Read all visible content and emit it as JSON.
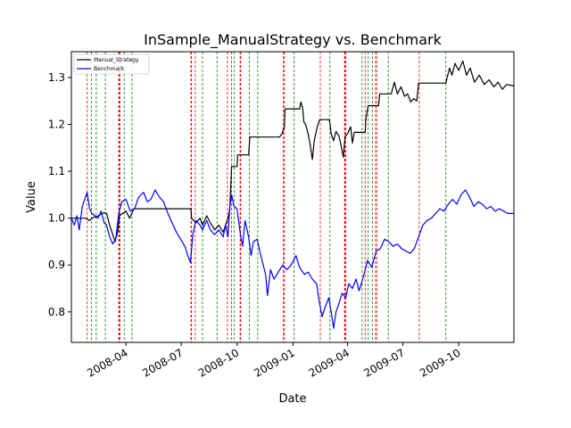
{
  "chart_data": {
    "type": "line",
    "title": "InSample_ManualStrategy vs. Benchmark",
    "xlabel": "Date",
    "ylabel": "Value",
    "xlim": [
      "2008-01-02",
      "2009-12-31"
    ],
    "ylim": [
      0.735,
      1.355
    ],
    "xticks": [
      {
        "date": "2008-04-01",
        "label": "2008-04"
      },
      {
        "date": "2008-07-01",
        "label": "2008-07"
      },
      {
        "date": "2008-10-01",
        "label": "2008-10"
      },
      {
        "date": "2009-01-01",
        "label": "2009-01"
      },
      {
        "date": "2009-04-01",
        "label": "2009-04"
      },
      {
        "date": "2009-07-01",
        "label": "2009-07"
      },
      {
        "date": "2009-10-01",
        "label": "2009-10"
      }
    ],
    "yticks": [
      0.8,
      0.9,
      1.0,
      1.1,
      1.2,
      1.3
    ],
    "legend": {
      "position": "top-left",
      "entries": [
        "Manual_Strategy",
        "Benchmark"
      ]
    },
    "series": [
      {
        "name": "Manual_Strategy",
        "color": "#000000",
        "points": [
          [
            "2008-01-02",
            1.0
          ],
          [
            "2008-01-25",
            1.0
          ],
          [
            "2008-02-01",
            0.995
          ],
          [
            "2008-02-05",
            1.0
          ],
          [
            "2008-02-15",
            1.005
          ],
          [
            "2008-02-25",
            1.012
          ],
          [
            "2008-02-29",
            1.01
          ],
          [
            "2008-03-04",
            0.99
          ],
          [
            "2008-03-10",
            0.965
          ],
          [
            "2008-03-14",
            0.95
          ],
          [
            "2008-03-19",
            0.975
          ],
          [
            "2008-03-21",
            1.005
          ],
          [
            "2008-04-01",
            1.015
          ],
          [
            "2008-04-07",
            1.0
          ],
          [
            "2008-04-14",
            1.02
          ],
          [
            "2008-07-17",
            1.02
          ],
          [
            "2008-07-18",
            1.0
          ],
          [
            "2008-07-25",
            0.99
          ],
          [
            "2008-08-01",
            1.0
          ],
          [
            "2008-08-05",
            0.985
          ],
          [
            "2008-08-12",
            1.005
          ],
          [
            "2008-08-18",
            0.99
          ],
          [
            "2008-08-25",
            0.975
          ],
          [
            "2008-09-01",
            0.985
          ],
          [
            "2008-09-08",
            0.97
          ],
          [
            "2008-09-12",
            0.985
          ],
          [
            "2008-09-16",
            1.0
          ],
          [
            "2008-09-19",
            1.02
          ],
          [
            "2008-09-22",
            1.11
          ],
          [
            "2008-10-01",
            1.11
          ],
          [
            "2008-10-02",
            1.135
          ],
          [
            "2008-10-20",
            1.135
          ],
          [
            "2008-10-22",
            1.173
          ],
          [
            "2008-12-10",
            1.173
          ],
          [
            "2008-12-14",
            1.18
          ],
          [
            "2008-12-18",
            1.195
          ],
          [
            "2008-12-19",
            1.233
          ],
          [
            "2009-01-12",
            1.233
          ],
          [
            "2009-01-14",
            1.248
          ],
          [
            "2009-01-17",
            1.235
          ],
          [
            "2009-01-19",
            1.205
          ],
          [
            "2009-01-22",
            1.2
          ],
          [
            "2009-01-26",
            1.18
          ],
          [
            "2009-01-29",
            1.16
          ],
          [
            "2009-02-02",
            1.125
          ],
          [
            "2009-02-05",
            1.165
          ],
          [
            "2009-02-10",
            1.195
          ],
          [
            "2009-02-14",
            1.21
          ],
          [
            "2009-03-02",
            1.21
          ],
          [
            "2009-03-05",
            1.18
          ],
          [
            "2009-03-09",
            1.165
          ],
          [
            "2009-03-13",
            1.185
          ],
          [
            "2009-03-18",
            1.175
          ],
          [
            "2009-03-22",
            1.15
          ],
          [
            "2009-03-25",
            1.13
          ],
          [
            "2009-03-28",
            1.175
          ],
          [
            "2009-04-01",
            1.18
          ],
          [
            "2009-04-06",
            1.195
          ],
          [
            "2009-04-09",
            1.16
          ],
          [
            "2009-04-12",
            1.183
          ],
          [
            "2009-04-30",
            1.183
          ],
          [
            "2009-05-01",
            1.21
          ],
          [
            "2009-05-05",
            1.24
          ],
          [
            "2009-05-22",
            1.24
          ],
          [
            "2009-05-24",
            1.265
          ],
          [
            "2009-06-12",
            1.265
          ],
          [
            "2009-06-14",
            1.275
          ],
          [
            "2009-06-17",
            1.29
          ],
          [
            "2009-06-22",
            1.265
          ],
          [
            "2009-06-28",
            1.28
          ],
          [
            "2009-07-04",
            1.26
          ],
          [
            "2009-07-09",
            1.265
          ],
          [
            "2009-07-14",
            1.248
          ],
          [
            "2009-07-19",
            1.255
          ],
          [
            "2009-07-24",
            1.25
          ],
          [
            "2009-07-27",
            1.288
          ],
          [
            "2009-09-10",
            1.288
          ],
          [
            "2009-09-12",
            1.3
          ],
          [
            "2009-09-16",
            1.32
          ],
          [
            "2009-09-20",
            1.305
          ],
          [
            "2009-09-25",
            1.33
          ],
          [
            "2009-10-01",
            1.315
          ],
          [
            "2009-10-08",
            1.335
          ],
          [
            "2009-10-14",
            1.305
          ],
          [
            "2009-10-20",
            1.32
          ],
          [
            "2009-10-27",
            1.29
          ],
          [
            "2009-11-04",
            1.305
          ],
          [
            "2009-11-12",
            1.285
          ],
          [
            "2009-11-20",
            1.295
          ],
          [
            "2009-11-28",
            1.28
          ],
          [
            "2009-12-05",
            1.29
          ],
          [
            "2009-12-12",
            1.275
          ],
          [
            "2009-12-19",
            1.285
          ],
          [
            "2009-12-31",
            1.282
          ]
        ]
      },
      {
        "name": "Benchmark",
        "color": "#0000ff",
        "points": [
          [
            "2008-01-02",
            1.0
          ],
          [
            "2008-01-07",
            0.985
          ],
          [
            "2008-01-11",
            1.005
          ],
          [
            "2008-01-15",
            0.975
          ],
          [
            "2008-01-20",
            1.025
          ],
          [
            "2008-01-24",
            1.04
          ],
          [
            "2008-01-28",
            1.055
          ],
          [
            "2008-02-01",
            1.02
          ],
          [
            "2008-02-05",
            1.01
          ],
          [
            "2008-02-10",
            1.005
          ],
          [
            "2008-02-15",
            1.0
          ],
          [
            "2008-02-20",
            1.015
          ],
          [
            "2008-02-25",
            0.99
          ],
          [
            "2008-02-29",
            0.985
          ],
          [
            "2008-03-05",
            0.96
          ],
          [
            "2008-03-10",
            0.945
          ],
          [
            "2008-03-15",
            0.955
          ],
          [
            "2008-03-20",
            1.01
          ],
          [
            "2008-03-25",
            1.035
          ],
          [
            "2008-04-01",
            1.04
          ],
          [
            "2008-04-08",
            1.015
          ],
          [
            "2008-04-15",
            1.02
          ],
          [
            "2008-04-22",
            1.045
          ],
          [
            "2008-04-30",
            1.055
          ],
          [
            "2008-05-06",
            1.035
          ],
          [
            "2008-05-12",
            1.04
          ],
          [
            "2008-05-19",
            1.06
          ],
          [
            "2008-05-26",
            1.045
          ],
          [
            "2008-06-02",
            1.035
          ],
          [
            "2008-06-09",
            1.01
          ],
          [
            "2008-06-16",
            0.99
          ],
          [
            "2008-06-23",
            0.97
          ],
          [
            "2008-06-30",
            0.955
          ],
          [
            "2008-07-07",
            0.94
          ],
          [
            "2008-07-12",
            0.92
          ],
          [
            "2008-07-16",
            0.905
          ],
          [
            "2008-07-20",
            0.965
          ],
          [
            "2008-07-25",
            0.995
          ],
          [
            "2008-08-01",
            0.985
          ],
          [
            "2008-08-05",
            0.975
          ],
          [
            "2008-08-12",
            0.995
          ],
          [
            "2008-08-18",
            0.975
          ],
          [
            "2008-08-25",
            0.965
          ],
          [
            "2008-09-01",
            0.975
          ],
          [
            "2008-09-08",
            0.96
          ],
          [
            "2008-09-12",
            0.985
          ],
          [
            "2008-09-16",
            0.96
          ],
          [
            "2008-09-19",
            1.025
          ],
          [
            "2008-09-22",
            1.05
          ],
          [
            "2008-09-26",
            1.025
          ],
          [
            "2008-10-01",
            1.02
          ],
          [
            "2008-10-06",
            0.97
          ],
          [
            "2008-10-10",
            0.94
          ],
          [
            "2008-10-14",
            0.995
          ],
          [
            "2008-10-20",
            0.96
          ],
          [
            "2008-10-24",
            0.92
          ],
          [
            "2008-10-28",
            0.95
          ],
          [
            "2008-11-03",
            0.955
          ],
          [
            "2008-11-10",
            0.915
          ],
          [
            "2008-11-17",
            0.88
          ],
          [
            "2008-11-20",
            0.835
          ],
          [
            "2008-11-25",
            0.89
          ],
          [
            "2008-12-01",
            0.87
          ],
          [
            "2008-12-08",
            0.885
          ],
          [
            "2008-12-15",
            0.9
          ],
          [
            "2008-12-22",
            0.89
          ],
          [
            "2008-12-29",
            0.9
          ],
          [
            "2009-01-06",
            0.92
          ],
          [
            "2009-01-12",
            0.895
          ],
          [
            "2009-01-20",
            0.88
          ],
          [
            "2009-01-26",
            0.885
          ],
          [
            "2009-02-02",
            0.87
          ],
          [
            "2009-02-09",
            0.86
          ],
          [
            "2009-02-13",
            0.825
          ],
          [
            "2009-02-18",
            0.79
          ],
          [
            "2009-02-23",
            0.81
          ],
          [
            "2009-03-01",
            0.83
          ],
          [
            "2009-03-05",
            0.8
          ],
          [
            "2009-03-09",
            0.765
          ],
          [
            "2009-03-13",
            0.8
          ],
          [
            "2009-03-17",
            0.815
          ],
          [
            "2009-03-23",
            0.84
          ],
          [
            "2009-03-29",
            0.83
          ],
          [
            "2009-04-03",
            0.86
          ],
          [
            "2009-04-09",
            0.85
          ],
          [
            "2009-04-15",
            0.87
          ],
          [
            "2009-04-20",
            0.845
          ],
          [
            "2009-04-27",
            0.875
          ],
          [
            "2009-05-04",
            0.91
          ],
          [
            "2009-05-11",
            0.895
          ],
          [
            "2009-05-18",
            0.93
          ],
          [
            "2009-05-25",
            0.935
          ],
          [
            "2009-06-01",
            0.955
          ],
          [
            "2009-06-08",
            0.95
          ],
          [
            "2009-06-15",
            0.94
          ],
          [
            "2009-06-22",
            0.945
          ],
          [
            "2009-06-29",
            0.935
          ],
          [
            "2009-07-06",
            0.93
          ],
          [
            "2009-07-13",
            0.925
          ],
          [
            "2009-07-20",
            0.935
          ],
          [
            "2009-07-27",
            0.96
          ],
          [
            "2009-08-03",
            0.985
          ],
          [
            "2009-08-10",
            0.995
          ],
          [
            "2009-08-17",
            1.0
          ],
          [
            "2009-08-24",
            1.01
          ],
          [
            "2009-08-31",
            1.02
          ],
          [
            "2009-09-07",
            1.015
          ],
          [
            "2009-09-14",
            1.03
          ],
          [
            "2009-09-21",
            1.04
          ],
          [
            "2009-09-28",
            1.03
          ],
          [
            "2009-10-05",
            1.05
          ],
          [
            "2009-10-12",
            1.06
          ],
          [
            "2009-10-19",
            1.045
          ],
          [
            "2009-10-26",
            1.025
          ],
          [
            "2009-11-02",
            1.035
          ],
          [
            "2009-11-09",
            1.03
          ],
          [
            "2009-11-16",
            1.02
          ],
          [
            "2009-11-23",
            1.025
          ],
          [
            "2009-11-30",
            1.015
          ],
          [
            "2009-12-07",
            1.02
          ],
          [
            "2009-12-14",
            1.015
          ],
          [
            "2009-12-21",
            1.01
          ],
          [
            "2009-12-31",
            1.01
          ]
        ]
      }
    ],
    "signal_lines": [
      {
        "date": "2008-01-28",
        "color": "#ff0000"
      },
      {
        "date": "2008-02-04",
        "color": "#008000"
      },
      {
        "date": "2008-02-12",
        "color": "#008000"
      },
      {
        "date": "2008-02-27",
        "color": "#008000"
      },
      {
        "date": "2008-03-20",
        "color": "#ff0000"
      },
      {
        "date": "2008-03-21",
        "color": "#ff0000"
      },
      {
        "date": "2008-03-22",
        "color": "#ff0000"
      },
      {
        "date": "2008-03-29",
        "color": "#008000"
      },
      {
        "date": "2008-04-11",
        "color": "#008000"
      },
      {
        "date": "2008-07-17",
        "color": "#ff0000"
      },
      {
        "date": "2008-07-18",
        "color": "#ff0000"
      },
      {
        "date": "2008-07-24",
        "color": "#ff0000"
      },
      {
        "date": "2008-08-05",
        "color": "#008000"
      },
      {
        "date": "2008-08-29",
        "color": "#008000"
      },
      {
        "date": "2008-09-15",
        "color": "#ff0000"
      },
      {
        "date": "2008-09-22",
        "color": "#ff0000"
      },
      {
        "date": "2008-09-26",
        "color": "#008000"
      },
      {
        "date": "2008-10-06",
        "color": "#ff0000"
      },
      {
        "date": "2008-10-07",
        "color": "#ff0000"
      },
      {
        "date": "2008-10-21",
        "color": "#008000"
      },
      {
        "date": "2008-11-04",
        "color": "#008000"
      },
      {
        "date": "2008-12-16",
        "color": "#ff0000"
      },
      {
        "date": "2008-12-18",
        "color": "#ff0000"
      },
      {
        "date": "2009-01-03",
        "color": "#008000"
      },
      {
        "date": "2009-02-15",
        "color": "#ff0000"
      },
      {
        "date": "2009-03-03",
        "color": "#008000"
      },
      {
        "date": "2009-03-27",
        "color": "#ff0000"
      },
      {
        "date": "2009-03-28",
        "color": "#ff0000"
      },
      {
        "date": "2009-03-29",
        "color": "#ff0000"
      },
      {
        "date": "2009-04-25",
        "color": "#008000"
      },
      {
        "date": "2009-04-30",
        "color": "#ff0000"
      },
      {
        "date": "2009-05-05",
        "color": "#008000"
      },
      {
        "date": "2009-05-12",
        "color": "#008000"
      },
      {
        "date": "2009-05-17",
        "color": "#ff0000"
      },
      {
        "date": "2009-05-19",
        "color": "#ff0000"
      },
      {
        "date": "2009-06-07",
        "color": "#008000"
      },
      {
        "date": "2009-07-28",
        "color": "#ff0000"
      },
      {
        "date": "2009-09-10",
        "color": "#008000"
      }
    ]
  }
}
